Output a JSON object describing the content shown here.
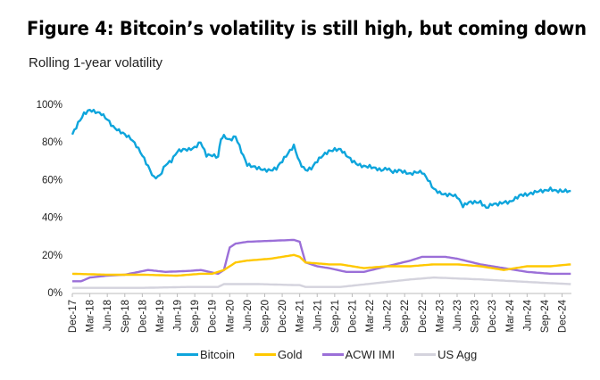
{
  "chart_data": {
    "type": "line",
    "title": "Figure 4: Bitcoin’s volatility is still high, but coming down",
    "subtitle": "Rolling 1-year volatility",
    "ylim": [
      0,
      100
    ],
    "yticks": [
      "0%",
      "20%",
      "40%",
      "60%",
      "80%",
      "100%"
    ],
    "ytick_values": [
      0,
      20,
      40,
      60,
      80,
      100
    ],
    "xlim": [
      "2017-12",
      "2025-01"
    ],
    "xticks": [
      "Dec-17",
      "Mar-18",
      "Jun-18",
      "Sep-18",
      "Dec-18",
      "Mar-19",
      "Jun-19",
      "Sep-19",
      "Dec-19",
      "Mar-20",
      "Jun-20",
      "Sep-20",
      "Dec-20",
      "Mar-21",
      "Jun-21",
      "Sep-21",
      "Dec-21",
      "Mar-22",
      "Jun-22",
      "Sep-22",
      "Dec-22",
      "Mar-23",
      "Jun-23",
      "Sep-23",
      "Dec-23",
      "Mar-24",
      "Jun-24",
      "Sep-24",
      "Dec-24"
    ],
    "grid": false,
    "legend_position": "bottom",
    "series": [
      {
        "name": "Bitcoin",
        "color": "#0ea5dc",
        "values": [
          [
            0,
            84
          ],
          [
            1,
            90
          ],
          [
            2,
            95
          ],
          [
            3,
            97
          ],
          [
            4,
            96
          ],
          [
            5,
            95
          ],
          [
            6,
            92
          ],
          [
            7,
            88
          ],
          [
            8,
            86
          ],
          [
            9,
            84
          ],
          [
            10,
            82
          ],
          [
            11,
            78
          ],
          [
            12,
            73
          ],
          [
            13,
            67
          ],
          [
            14,
            61
          ],
          [
            15,
            62
          ],
          [
            16,
            68
          ],
          [
            17,
            70
          ],
          [
            18,
            75
          ],
          [
            19,
            76
          ],
          [
            20,
            76
          ],
          [
            21,
            77
          ],
          [
            22,
            80
          ],
          [
            23,
            73
          ],
          [
            24,
            73
          ],
          [
            25,
            72
          ],
          [
            25.5,
            82
          ],
          [
            26,
            83
          ],
          [
            27,
            81
          ],
          [
            28,
            83
          ],
          [
            29,
            75
          ],
          [
            30,
            68
          ],
          [
            31,
            67
          ],
          [
            32,
            66
          ],
          [
            33,
            65
          ],
          [
            34,
            65
          ],
          [
            35,
            66
          ],
          [
            36,
            70
          ],
          [
            37,
            74
          ],
          [
            38,
            78
          ],
          [
            39,
            69
          ],
          [
            40,
            65
          ],
          [
            41,
            66
          ],
          [
            42,
            70
          ],
          [
            43,
            73
          ],
          [
            44,
            75
          ],
          [
            45,
            76
          ],
          [
            46,
            76
          ],
          [
            47,
            73
          ],
          [
            48,
            70
          ],
          [
            49,
            68
          ],
          [
            50,
            67
          ],
          [
            51,
            67
          ],
          [
            52,
            66
          ],
          [
            53,
            65
          ],
          [
            54,
            66
          ],
          [
            55,
            64
          ],
          [
            56,
            65
          ],
          [
            57,
            64
          ],
          [
            58,
            63
          ],
          [
            59,
            64
          ],
          [
            60,
            64
          ],
          [
            61,
            60
          ],
          [
            62,
            55
          ],
          [
            63,
            53
          ],
          [
            64,
            52
          ],
          [
            65,
            52
          ],
          [
            66,
            51
          ],
          [
            67,
            46
          ],
          [
            68,
            48
          ],
          [
            69,
            48
          ],
          [
            70,
            48
          ],
          [
            71,
            45
          ],
          [
            72,
            47
          ],
          [
            73,
            47
          ],
          [
            74,
            48
          ],
          [
            75,
            48
          ],
          [
            76,
            50
          ],
          [
            77,
            52
          ],
          [
            78,
            52
          ],
          [
            79,
            53
          ],
          [
            80,
            54
          ],
          [
            81,
            54
          ],
          [
            82,
            55
          ],
          [
            83,
            54
          ],
          [
            84,
            54
          ],
          [
            85.5,
            54
          ]
        ]
      },
      {
        "name": "Gold",
        "color": "#ffc800",
        "values": [
          [
            0,
            10
          ],
          [
            6,
            9.5
          ],
          [
            12,
            9.5
          ],
          [
            18,
            9
          ],
          [
            22,
            10
          ],
          [
            24,
            10
          ],
          [
            26,
            12
          ],
          [
            28,
            16
          ],
          [
            30,
            17
          ],
          [
            34,
            18
          ],
          [
            38,
            20
          ],
          [
            39,
            19
          ],
          [
            40,
            16
          ],
          [
            44,
            15
          ],
          [
            46,
            15
          ],
          [
            50,
            13
          ],
          [
            54,
            14
          ],
          [
            58,
            14
          ],
          [
            62,
            15
          ],
          [
            66,
            15
          ],
          [
            70,
            14
          ],
          [
            72,
            13
          ],
          [
            74,
            12
          ],
          [
            78,
            14
          ],
          [
            82,
            14
          ],
          [
            85.5,
            15
          ]
        ]
      },
      {
        "name": "ACWI IMI",
        "color": "#9b6fd8",
        "values": [
          [
            0,
            6
          ],
          [
            1.5,
            6
          ],
          [
            3,
            8
          ],
          [
            6,
            9
          ],
          [
            9,
            9.5
          ],
          [
            13,
            12
          ],
          [
            16,
            11
          ],
          [
            20,
            11.5
          ],
          [
            22,
            12
          ],
          [
            25,
            10
          ],
          [
            26,
            12
          ],
          [
            27,
            24
          ],
          [
            28,
            26
          ],
          [
            30,
            27
          ],
          [
            34,
            27.5
          ],
          [
            38,
            28
          ],
          [
            39,
            27
          ],
          [
            40,
            16
          ],
          [
            42,
            14
          ],
          [
            44,
            13
          ],
          [
            47,
            11
          ],
          [
            50,
            11
          ],
          [
            54,
            14
          ],
          [
            58,
            17
          ],
          [
            60,
            19
          ],
          [
            64,
            19
          ],
          [
            66,
            18
          ],
          [
            70,
            15
          ],
          [
            74,
            13
          ],
          [
            78,
            11
          ],
          [
            82,
            10
          ],
          [
            85.5,
            10
          ]
        ]
      },
      {
        "name": "US Agg",
        "color": "#d4d3dd",
        "values": [
          [
            0,
            2.5
          ],
          [
            12,
            2.5
          ],
          [
            20,
            3
          ],
          [
            25,
            3
          ],
          [
            26,
            4.5
          ],
          [
            32,
            4.5
          ],
          [
            38,
            4
          ],
          [
            39,
            4
          ],
          [
            40,
            3
          ],
          [
            46,
            3
          ],
          [
            52,
            5
          ],
          [
            58,
            7
          ],
          [
            62,
            8
          ],
          [
            66,
            7.5
          ],
          [
            70,
            7
          ],
          [
            76,
            6
          ],
          [
            82,
            5
          ],
          [
            85.5,
            4.5
          ]
        ]
      }
    ]
  }
}
